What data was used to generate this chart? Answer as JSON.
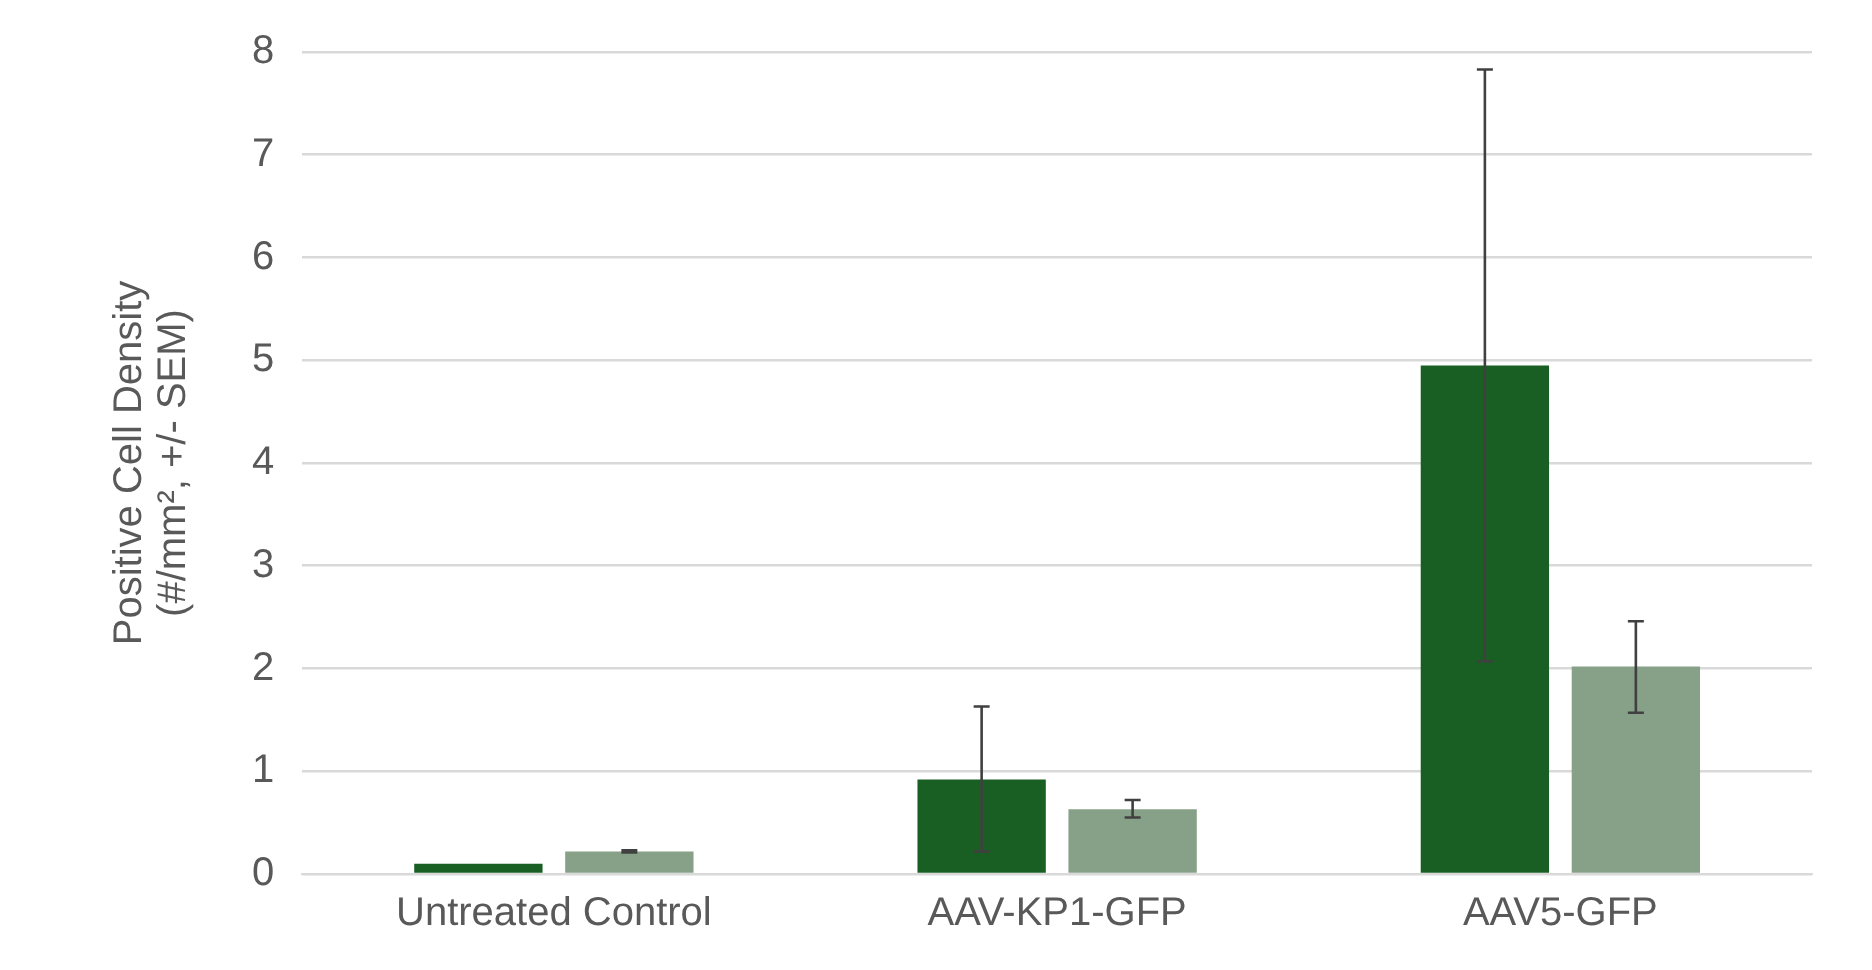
{
  "chart_data": {
    "type": "bar",
    "ylabel": "Positive Cell Density (#/mm², +/- SEM)",
    "categories": [
      "Untreated Control",
      "AAV-KP1-GFP",
      "AAV5-GFP"
    ],
    "series": [
      {
        "color": "#195e22",
        "values": [
          0.1,
          0.92,
          4.95
        ],
        "errors": [
          null,
          [
            0.22,
            1.63
          ],
          [
            2.07,
            7.83
          ]
        ]
      },
      {
        "color": "#87a088",
        "values": [
          0.22,
          0.63,
          2.02
        ],
        "errors": [
          [
            0.21,
            0.23
          ],
          [
            0.55,
            0.72
          ],
          [
            1.57,
            2.46
          ]
        ]
      }
    ],
    "ylim": [
      0,
      8
    ],
    "yticks": [
      0,
      1,
      2,
      3,
      4,
      5,
      6,
      7,
      8
    ],
    "grid": "y",
    "legend": false
  }
}
